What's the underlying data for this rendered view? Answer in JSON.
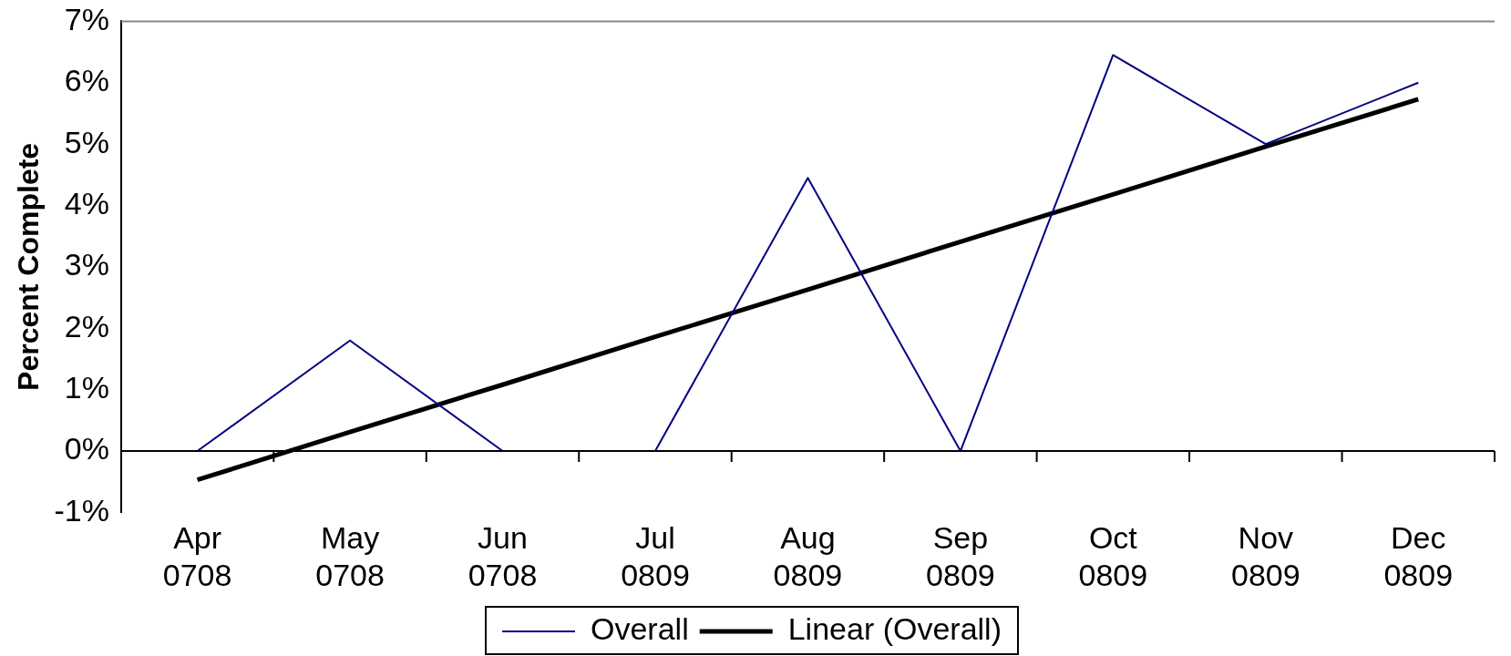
{
  "chart_data": {
    "type": "line",
    "ylabel": "Percent Complete",
    "categories": [
      "Apr 0708",
      "May 0708",
      "Jun 0708",
      "Jul 0809",
      "Aug 0809",
      "Sep 0809",
      "Oct 0809",
      "Nov 0809",
      "Dec 0809"
    ],
    "series": [
      {
        "name": "Overall",
        "color": "#000080",
        "values": [
          0,
          1.8,
          0,
          0,
          4.45,
          0,
          6.45,
          5.0,
          6.0
        ]
      },
      {
        "name": "Linear (Overall)",
        "type": "line",
        "color": "#000000",
        "values": [
          -0.47,
          0.31,
          1.08,
          1.86,
          2.63,
          3.41,
          4.18,
          4.96,
          5.73
        ]
      }
    ],
    "ylim": [
      -1,
      7
    ],
    "yticks": [
      {
        "value": -1,
        "label": "-1%"
      },
      {
        "value": 0,
        "label": "0%"
      },
      {
        "value": 1,
        "label": "1%"
      },
      {
        "value": 2,
        "label": "2%"
      },
      {
        "value": 3,
        "label": "3%"
      },
      {
        "value": 4,
        "label": "4%"
      },
      {
        "value": 5,
        "label": "5%"
      },
      {
        "value": 6,
        "label": "6%"
      },
      {
        "value": 7,
        "label": "7%"
      }
    ],
    "grid": false,
    "legend": "bottom",
    "marker": "none",
    "line_style": "solid"
  }
}
